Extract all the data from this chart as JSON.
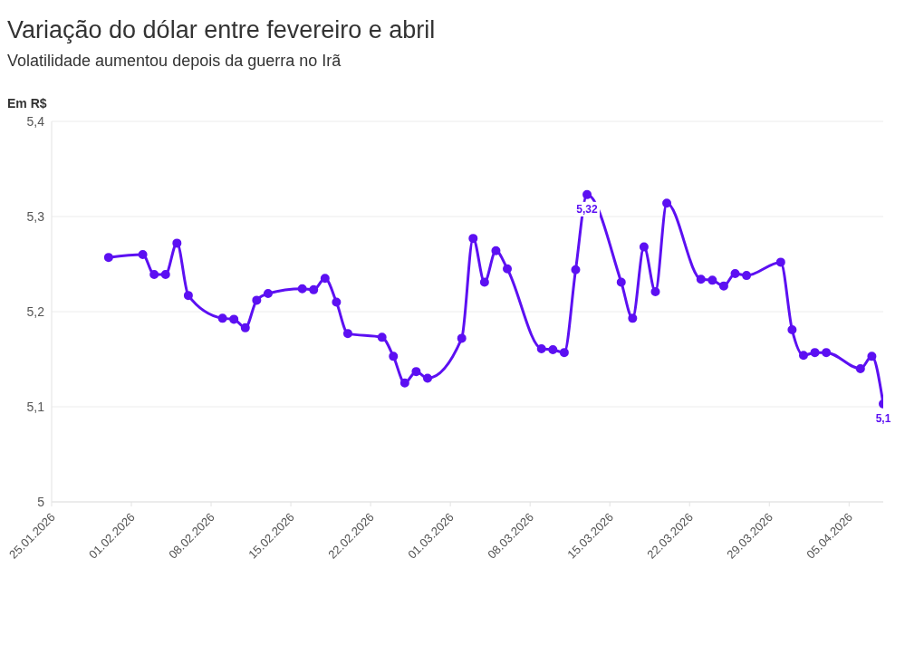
{
  "chart_data": {
    "type": "line",
    "title": "Variação do dólar entre fevereiro e abril",
    "subtitle": "Volatilidade aumentou depois da guerra no Irã",
    "ylabel": "Em R$",
    "x": [
      "2026-01-30",
      "2026-02-02",
      "2026-02-03",
      "2026-02-04",
      "2026-02-05",
      "2026-02-06",
      "2026-02-09",
      "2026-02-10",
      "2026-02-11",
      "2026-02-12",
      "2026-02-13",
      "2026-02-16",
      "2026-02-17",
      "2026-02-18",
      "2026-02-19",
      "2026-02-20",
      "2026-02-23",
      "2026-02-24",
      "2026-02-25",
      "2026-02-26",
      "2026-02-27",
      "2026-03-02",
      "2026-03-03",
      "2026-03-04",
      "2026-03-05",
      "2026-03-06",
      "2026-03-09",
      "2026-03-10",
      "2026-03-11",
      "2026-03-12",
      "2026-03-13",
      "2026-03-16",
      "2026-03-17",
      "2026-03-18",
      "2026-03-19",
      "2026-03-20",
      "2026-03-23",
      "2026-03-24",
      "2026-03-25",
      "2026-03-26",
      "2026-03-27",
      "2026-03-30",
      "2026-03-31",
      "2026-04-01",
      "2026-04-02",
      "2026-04-03",
      "2026-04-06",
      "2026-04-07",
      "2026-04-08"
    ],
    "series": [
      {
        "color": "#5c10f2",
        "values": [
          5.257,
          5.26,
          5.239,
          5.239,
          5.272,
          5.217,
          5.193,
          5.192,
          5.183,
          5.212,
          5.219,
          5.224,
          5.223,
          5.235,
          5.21,
          5.177,
          5.173,
          5.153,
          5.125,
          5.137,
          5.13,
          5.172,
          5.277,
          5.231,
          5.264,
          5.245,
          5.161,
          5.16,
          5.157,
          5.244,
          5.323,
          5.231,
          5.193,
          5.268,
          5.221,
          5.314,
          5.234,
          5.233,
          5.227,
          5.24,
          5.238,
          5.252,
          5.181,
          5.154,
          5.157,
          5.157,
          5.14,
          5.153,
          5.103
        ],
        "value_labels": [
          null,
          null,
          null,
          null,
          null,
          null,
          null,
          null,
          null,
          null,
          null,
          null,
          null,
          null,
          null,
          null,
          null,
          null,
          null,
          null,
          null,
          null,
          null,
          null,
          null,
          null,
          null,
          null,
          null,
          null,
          "5,32",
          null,
          null,
          null,
          null,
          null,
          null,
          null,
          null,
          null,
          null,
          null,
          null,
          null,
          null,
          null,
          null,
          null,
          "5,1"
        ]
      }
    ],
    "xlim": [
      "2026-01-25",
      "2026-04-08"
    ],
    "xticks": [
      {
        "value": "2026-01-25",
        "label": "25.01.2026"
      },
      {
        "value": "2026-02-01",
        "label": "01.02.2026"
      },
      {
        "value": "2026-02-08",
        "label": "08.02.2026"
      },
      {
        "value": "2026-02-15",
        "label": "15.02.2026"
      },
      {
        "value": "2026-02-22",
        "label": "22.02.2026"
      },
      {
        "value": "2026-03-01",
        "label": "01.03.2026"
      },
      {
        "value": "2026-03-08",
        "label": "08.03.2026"
      },
      {
        "value": "2026-03-15",
        "label": "15.03.2026"
      },
      {
        "value": "2026-03-22",
        "label": "22.03.2026"
      },
      {
        "value": "2026-03-29",
        "label": "29.03.2026"
      },
      {
        "value": "2026-04-05",
        "label": "05.04.2026"
      }
    ],
    "ylim": [
      5,
      5.4
    ],
    "yticks": [
      5,
      {
        "value": 5.1,
        "label": "5,1"
      },
      {
        "value": 5.2,
        "label": "5,2"
      },
      {
        "value": 5.3,
        "label": "5,3"
      },
      {
        "value": 5.4,
        "label": "5,4"
      }
    ],
    "grid": "y",
    "marker": "circle",
    "line_style": "solid",
    "legend": false
  }
}
